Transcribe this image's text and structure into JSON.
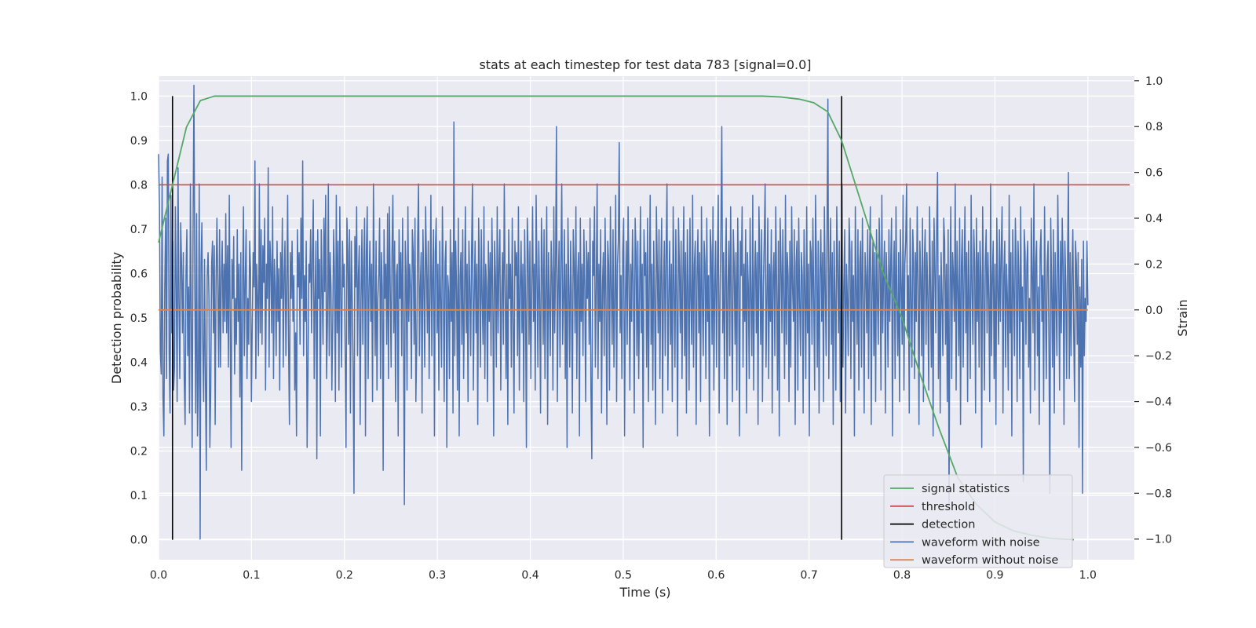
{
  "chart_data": {
    "type": "line",
    "title": "stats at each timestep for test data 783 [signal=0.0]",
    "xlabel": "Time (s)",
    "ylabel": "Detection probability",
    "y2label": "Strain",
    "xlim": [
      0.0,
      1.05
    ],
    "ylim": [
      -0.045,
      1.045
    ],
    "y2lim": [
      -1.09,
      1.02
    ],
    "xticks": [
      "0.0",
      "0.1",
      "0.2",
      "0.3",
      "0.4",
      "0.5",
      "0.6",
      "0.7",
      "0.8",
      "0.9",
      "1.0"
    ],
    "yticks": [
      "0.0",
      "0.1",
      "0.2",
      "0.3",
      "0.4",
      "0.5",
      "0.6",
      "0.7",
      "0.8",
      "0.9",
      "1.0"
    ],
    "y2ticks": [
      "−1.0",
      "−0.8",
      "−0.6",
      "−0.4",
      "−0.2",
      "0.0",
      "0.2",
      "0.4",
      "0.6",
      "0.8",
      "1.0"
    ],
    "grid": true,
    "legend_position": "lower-right",
    "series": [
      {
        "name": "signal statistics",
        "axis": "left",
        "color": "#55a868",
        "x": [
          0.0,
          0.015,
          0.03,
          0.045,
          0.06,
          0.075,
          0.1,
          0.2,
          0.3,
          0.4,
          0.5,
          0.6,
          0.65,
          0.67,
          0.69,
          0.705,
          0.72,
          0.735,
          0.75,
          0.765,
          0.78,
          0.8,
          0.82,
          0.84,
          0.86,
          0.88,
          0.9,
          0.92,
          0.94,
          0.96,
          0.985
        ],
        "y": [
          0.67,
          0.8,
          0.93,
          0.99,
          1.0,
          1.0,
          1.0,
          1.0,
          1.0,
          1.0,
          1.0,
          1.0,
          1.0,
          0.998,
          0.993,
          0.985,
          0.965,
          0.9,
          0.8,
          0.7,
          0.6,
          0.5,
          0.37,
          0.25,
          0.14,
          0.08,
          0.04,
          0.02,
          0.01,
          0.003,
          0.0
        ]
      },
      {
        "name": "threshold",
        "axis": "left",
        "color": "#c44e52",
        "x": [
          0.0,
          1.045
        ],
        "y": [
          0.8,
          0.8
        ]
      },
      {
        "name": "detection",
        "axis": "left",
        "color": "#000000",
        "type": "vlines",
        "x": [
          0.015,
          0.735
        ],
        "y_range": [
          0.0,
          1.0
        ]
      },
      {
        "name": "waveform with noise",
        "axis": "right",
        "color": "#4c72b0",
        "x_start": 0.0,
        "x_end": 1.0,
        "y": [
          0.68,
          0.45,
          -0.18,
          -0.28,
          0.58,
          -0.38,
          -0.55,
          0.1,
          0.4,
          -0.3,
          0.65,
          0.68,
          -0.2,
          -0.45,
          0.5,
          -0.1,
          0.3,
          -0.35,
          -0.25,
          0.45,
          0.1,
          -0.4,
          0.62,
          0.05,
          -0.3,
          0.38,
          0.2,
          -0.1,
          0.25,
          -0.3,
          -0.5,
          0.15,
          0.35,
          -0.2,
          0.1,
          -0.45,
          0.55,
          -0.05,
          -0.6,
          0.35,
          0.98,
          0.1,
          -0.45,
          0.42,
          -0.55,
          -0.3,
          0.55,
          -1.0,
          0.2,
          0.38,
          -0.15,
          -0.4,
          0.22,
          -0.3,
          -0.7,
          0.15,
          0.25,
          0.05,
          -0.6,
          -0.35,
          0.2,
          0.3,
          -0.1,
          0.28,
          -0.5,
          0.12,
          0.4,
          0.1,
          -0.25,
          0.35,
          -0.25,
          0.15,
          0.3,
          -0.1,
          0.2,
          -0.05,
          0.42,
          -0.1,
          0.28,
          -0.25,
          0.5,
          -0.05,
          -0.6,
          0.22,
          0.05,
          0.32,
          -0.28,
          0.05,
          -0.15,
          0.35,
          -0.05,
          0.2,
          -0.38,
          0.25,
          -0.7,
          0.1,
          0.45,
          -0.2,
          0.12,
          0.35,
          -0.3,
          0.05,
          -0.15,
          0.3,
          0.18,
          -0.4,
          -0.05,
          0.25,
          0.1,
          0.65,
          -0.3,
          0.2,
          0.05,
          -0.2,
          0.55,
          -0.1,
          0.35,
          -0.15,
          0.28,
          0.12,
          0.4,
          -0.35,
          0.2,
          0.05,
          0.62,
          -0.25,
          0.3,
          0.2,
          -0.1,
          0.45,
          -0.3,
          0.22,
          0.1,
          -0.2,
          0.3,
          -0.05,
          0.18,
          -0.35,
          0.25,
          0.05,
          0.4,
          -0.25,
          0.15,
          0.3,
          -0.2,
          0.1,
          0.5,
          -0.15,
          -0.5,
          0.25,
          0.05,
          0.3,
          -0.05,
          0.15,
          -0.35,
          -0.1,
          -0.55,
          0.35,
          0.1,
          0.25,
          -0.15,
          0.4,
          0.05,
          0.65,
          -0.2,
          0.15,
          -0.05,
          0.3,
          -0.6,
          -0.25,
          0.2,
          0.12,
          0.35,
          -0.1,
          0.25,
          0.48,
          -0.3,
          0.05,
          0.3,
          -0.65,
          0.35,
          0.05,
          0.22,
          -0.55,
          0.35,
          0.1,
          -0.15,
          0.4,
          0.08,
          0.5,
          -0.3,
          -0.05,
          0.55,
          -0.2,
          0.25,
          0.1,
          -0.35,
          -0.05,
          0.35,
          0.15,
          -0.4,
          0.5,
          -0.1,
          0.3,
          -0.35,
          0.45,
          0.05,
          -0.25,
          0.3,
          0.1,
          0.2,
          -0.2,
          -0.6,
          0.4,
          0.25,
          -0.15,
          0.35,
          -0.45,
          0.3,
          0.05,
          -0.25,
          -0.8,
          0.32,
          0.1,
          0.45,
          -0.2,
          0.15,
          0.28,
          -0.5,
          0.05,
          0.35,
          -0.15,
          0.2,
          0.4,
          -0.55,
          0.25,
          0.45,
          -0.3,
          0.1,
          0.3,
          -0.05,
          0.2,
          -0.4,
          0.55,
          0.1,
          -0.2,
          0.3,
          -0.35,
          0.05,
          0.15,
          0.4,
          -0.3,
          0.25,
          0.1,
          -0.7,
          0.35,
          0.05,
          0.2,
          -0.15,
          0.42,
          -0.3,
          0.45,
          0.1,
          -0.25,
          0.25,
          0.5,
          -0.1,
          0.3,
          -0.4,
          0.15,
          0.2,
          -0.55,
          0.35,
          0.05,
          0.25,
          -0.2,
          0.4,
          -0.1,
          -0.85,
          0.3,
          0.15,
          -0.35,
          0.45,
          -0.05,
          0.2,
          0.1,
          -0.3,
          0.35,
          0.25,
          -0.15,
          0.4,
          -0.4,
          -0.15,
          0.3,
          0.55,
          -0.2,
          0.1,
          0.25,
          -0.45,
          0.35,
          0.12,
          -0.25,
          0.45,
          0.2,
          -0.1,
          0.3,
          -0.3,
          0.05,
          0.5,
          -0.2,
          0.15,
          0.35,
          -0.55,
          0.25,
          0.4,
          -0.1,
          0.2,
          -0.35,
          0.3,
          0.05,
          -0.25,
          0.45,
          0.12,
          -0.4,
          0.2,
          0.3,
          -0.6,
          0.15,
          0.08,
          -0.3,
          0.35,
          -0.05,
          0.25,
          -0.45,
          0.82,
          -0.2,
          0.3,
          0.1,
          -0.35,
          0.4,
          -0.55,
          0.15,
          0.25,
          -0.15,
          0.35,
          -0.3,
          0.05,
          0.45,
          -0.1,
          0.2,
          -0.4,
          0.3,
          0.1,
          -0.2,
          0.25,
          0.55,
          -0.35,
          0.05,
          0.3,
          -0.1,
          0.2,
          -0.5,
          0.4,
          0.15,
          -0.25,
          0.35,
          0.05,
          -0.15,
          0.45,
          -0.3,
          0.2,
          0.1,
          -0.4,
          0.3,
          -0.05,
          0.25,
          -0.2,
          0.4,
          0.08,
          -0.55,
          0.3,
          0.15,
          -0.25,
          0.45,
          -0.1,
          0.2,
          0.35,
          -0.35,
          0.05,
          0.25,
          -0.15,
          0.55,
          0.1,
          -0.3,
          0.2,
          -0.5,
          0.35,
          0.05,
          0.2,
          -0.25,
          0.4,
          -0.05,
          -0.45,
          0.3,
          0.15,
          0.25,
          -0.2,
          0.45,
          -0.35,
          0.1,
          0.3,
          -0.1,
          0.2,
          -0.4,
          0.35,
          0.05,
          -0.6,
          0.4,
          0.25,
          -0.15,
          0.3,
          -0.3,
          0.1,
          0.45,
          -0.05,
          0.2,
          -0.35,
          0.5,
          0.15,
          -0.25,
          0.3,
          0.05,
          -0.45,
          0.4,
          0.2,
          -0.15,
          0.35,
          -0.3,
          0.1,
          0.45,
          -0.5,
          0.25,
          0.05,
          -0.2,
          0.3,
          0.15,
          -0.35,
          0.45,
          -0.1,
          0.2,
          0.8,
          -0.4,
          0.1,
          0.3,
          -0.25,
          0.2,
          0.55,
          -0.15,
          0.05,
          0.35,
          -0.3,
          0.2,
          -0.6,
          0.4,
          0.1,
          -0.25,
          0.3,
          0.05,
          -0.45,
          0.35,
          0.2,
          -0.1,
          0.45,
          -0.3,
          0.15,
          0.25,
          -0.55,
          0.4,
          -0.05,
          0.2,
          -0.2,
          0.35,
          0.1,
          -0.4,
          0.3,
          0.05,
          0.25,
          -0.15,
          0.4,
          -0.35,
          -0.65,
          0.3,
          0.15,
          0.45,
          -0.25,
          0.1,
          0.55,
          -0.3,
          0.2,
          -0.05,
          0.35,
          -0.45,
          0.1,
          0.25,
          -0.2,
          0.4,
          0.05,
          -0.5,
          0.3,
          0.2,
          -0.35,
          0.45,
          0.1,
          -0.15,
          0.35,
          -0.25,
          0.05,
          0.5,
          -0.4,
          0.2,
          0.3,
          0.73,
          -0.1,
          0.15,
          -0.3,
          0.25,
          0.4,
          -0.55,
          0.05,
          0.3,
          -0.15,
          0.45,
          0.15,
          -0.35,
          0.2,
          -0.05,
          0.35,
          0.1,
          -0.45,
          0.4,
          0.25,
          -0.2,
          0.3,
          -0.3,
          0.05,
          0.45,
          -0.1,
          0.2,
          -0.6,
          0.35,
          0.15,
          0.25,
          -0.25,
          0.4,
          -0.4,
          0.1,
          0.5,
          -0.15,
          0.2,
          -0.35,
          0.3,
          0.05,
          -0.5,
          0.45,
          0.2,
          -0.1,
          0.35,
          -0.3,
          0.15,
          0.4,
          -0.45,
          0.1,
          0.3,
          -0.2,
          0.25,
          0.55,
          -0.35,
          0.05,
          0.3,
          -0.15,
          0.2,
          -0.4,
          0.45,
          0.1,
          -0.25,
          0.35,
          0.05,
          -0.55,
          0.4,
          0.2,
          -0.1,
          0.3,
          -0.3,
          0.15,
          0.45,
          -0.2,
          0.25,
          -0.45,
          0.35,
          0.1,
          -0.35,
          0.4,
          0.05,
          -0.15,
          0.5,
          -0.25,
          0.2,
          0.3,
          -0.5,
          0.15,
          0.35,
          -0.1,
          0.25,
          -0.4,
          0.45,
          0.05,
          -0.2,
          0.3,
          0.2,
          -0.3,
          0.4,
          -0.05,
          0.15,
          -0.55,
          0.35,
          0.25,
          -0.15,
          0.45,
          -0.35,
          0.1,
          0.3,
          -0.25,
          0.2,
          0.5,
          -0.45,
          0.05,
          0.35,
          0.8,
          -0.1,
          0.25,
          -0.3,
          0.15,
          0.4,
          -0.5,
          0.1,
          0.3,
          -0.2,
          0.45,
          0.05,
          -0.4,
          0.35,
          0.2,
          -0.15,
          0.25,
          -0.35,
          0.4,
          0.1,
          -0.55,
          0.3,
          0.15,
          0.45,
          -0.25,
          0.2,
          -0.05,
          0.35,
          -0.45,
          0.25,
          0.1,
          -0.3,
          0.4,
          0.05,
          -0.2,
          0.5,
          -0.35,
          0.15,
          0.3,
          -0.1,
          0.25,
          -0.5,
          0.45,
          0.2,
          -0.15,
          0.35,
          -0.4,
          0.1,
          0.3,
          0.55,
          -0.25,
          0.05,
          0.4,
          -0.3,
          0.2,
          -0.05,
          0.35,
          -0.45,
          0.15,
          0.25,
          -0.2,
          0.45,
          0.1,
          -0.35,
          0.3,
          -0.55,
          0.4,
          0.2,
          -0.1,
          0.35,
          0.05,
          -0.3,
          0.5,
          -0.15,
          0.25,
          0.15,
          -0.4,
          0.3,
          -0.25,
          0.45,
          0.1,
          -0.05,
          0.35,
          -0.5,
          0.2,
          0.3,
          -0.35,
          0.4,
          0.05,
          -0.2,
          0.25,
          0.15,
          -0.45,
          0.35,
          0.1,
          -0.3,
          0.45,
          -0.1,
          0.2,
          -0.55,
          0.3,
          0.25,
          -0.15,
          0.4,
          0.05,
          -0.35,
          0.5,
          0.2,
          -0.25,
          0.3,
          -0.45,
          0.15,
          0.35,
          -0.05,
          0.25,
          -0.4,
          0.45,
          0.1,
          -0.2,
          0.35,
          0.92,
          -0.3,
          0.15,
          0.4,
          -0.15,
          0.25,
          -0.5,
          0.3,
          0.05,
          -0.35,
          0.45,
          0.2,
          -0.1,
          0.3,
          -0.4,
          0.15,
          0.55,
          -0.25,
          0.1,
          0.35,
          -0.45,
          0.2,
          0.05,
          -0.2,
          0.4,
          0.25,
          -0.3,
          0.3,
          -0.05,
          0.15,
          -0.55,
          0.45,
          0.1,
          -0.15,
          0.35,
          -0.35,
          0.2,
          0.3,
          -0.25,
          0.4,
          0.05,
          -0.45,
          0.25,
          0.15,
          -0.1,
          0.35,
          -0.3,
          0.2,
          0.45,
          -0.5,
          0.1,
          0.3,
          -0.2,
          0.25,
          -0.4,
          0.35,
          0.05,
          -0.15,
          0.4,
          0.2,
          -0.35,
          0.5,
          -0.1,
          0.15,
          0.3,
          -0.45,
          0.25,
          0.1,
          -0.25,
          0.35,
          -0.05,
          0.2,
          0.4,
          -0.55,
          0.15,
          0.3,
          -0.3,
          0.45,
          0.05,
          -0.2,
          0.25,
          -0.4,
          0.35,
          0.1,
          -0.15,
          0.5,
          -0.35,
          0.2,
          0.3,
          0.55,
          -0.1,
          0.15,
          -0.45,
          0.4,
          0.05,
          -0.25,
          0.35,
          0.2,
          -0.3,
          0.25,
          -0.05,
          0.45,
          0.1,
          -0.5,
          0.3,
          0.15,
          -0.2,
          0.4,
          -0.4,
          0.2,
          0.35,
          -0.15,
          0.25,
          0.05,
          -0.35,
          0.45,
          0.1,
          -0.25,
          0.3,
          -0.55,
          0.4,
          0.2,
          -0.1,
          0.35,
          0.6,
          -0.3,
          0.15,
          -0.45,
          0.25,
          0.05,
          -0.2,
          0.4,
          0.3,
          -0.15,
          0.2,
          -0.4,
          0.35,
          -0.85,
          0.1,
          0.45,
          -0.3,
          0.25,
          0.15,
          -0.05,
          0.55,
          -0.35,
          0.3,
          0.1,
          -0.2,
          0.4,
          -0.5,
          0.2,
          0.35,
          -0.25,
          0.15,
          0.45,
          -0.1,
          0.25,
          -0.4,
          0.3,
          0.05,
          -0.3,
          0.5,
          0.1,
          -0.15,
          0.35,
          0.2,
          -0.45,
          0.4,
          -0.05,
          0.25,
          -0.25,
          0.3,
          0.15,
          -0.6,
          0.45,
          0.1,
          -0.35,
          0.2,
          0.35,
          -0.1,
          0.25,
          0.05,
          -0.4,
          0.55,
          -0.2,
          0.15,
          0.3,
          -0.3,
          0.2,
          -0.5,
          0.4,
          0.1,
          -0.15,
          0.35,
          -0.05,
          0.25,
          0.45,
          -0.45,
          0.15,
          0.3,
          -0.25,
          0.2,
          0.05,
          -0.35,
          0.5,
          -0.1,
          0.25,
          -0.55,
          0.35,
          0.1,
          -0.2,
          0.4,
          0.2,
          -0.4,
          0.3,
          0.15,
          -0.3,
          0.45,
          -0.05,
          0.1,
          -0.75,
          0.35,
          0.25,
          -0.15,
          0.2,
          0.3,
          -0.25,
          0.05,
          -0.45,
          0.4,
          0.15,
          -0.1,
          0.55,
          -0.35,
          0.2,
          0.3,
          -0.2,
          0.1,
          -0.5,
          0.25,
          0.35,
          -0.05,
          0.15,
          -0.4,
          0.45,
          0.05,
          -0.3,
          0.2,
          0.3,
          -0.15,
          -0.8,
          0.4,
          0.1,
          -0.25,
          0.35,
          -0.45,
          0.25,
          0.05,
          -0.2,
          0.5,
          0.15,
          -0.35,
          0.3,
          -0.1,
          0.4,
          0.2,
          -0.5,
          0.3,
          0.12,
          -0.3,
          0.2,
          0.6,
          -0.3,
          0.25,
          -0.2,
          0.15,
          0.35,
          -0.1,
          -0.4,
          0.3,
          0.2,
          -0.15,
          0.25,
          -0.6,
          0.1,
          -0.25,
          0.22,
          -0.8,
          0.3,
          -0.2,
          0.05,
          -0.05,
          0.3,
          0.02
        ]
      },
      {
        "name": "waveform without noise",
        "axis": "right",
        "color": "#dd8452",
        "x": [
          0.0,
          1.0
        ],
        "y": [
          0.0,
          0.0
        ]
      }
    ]
  }
}
